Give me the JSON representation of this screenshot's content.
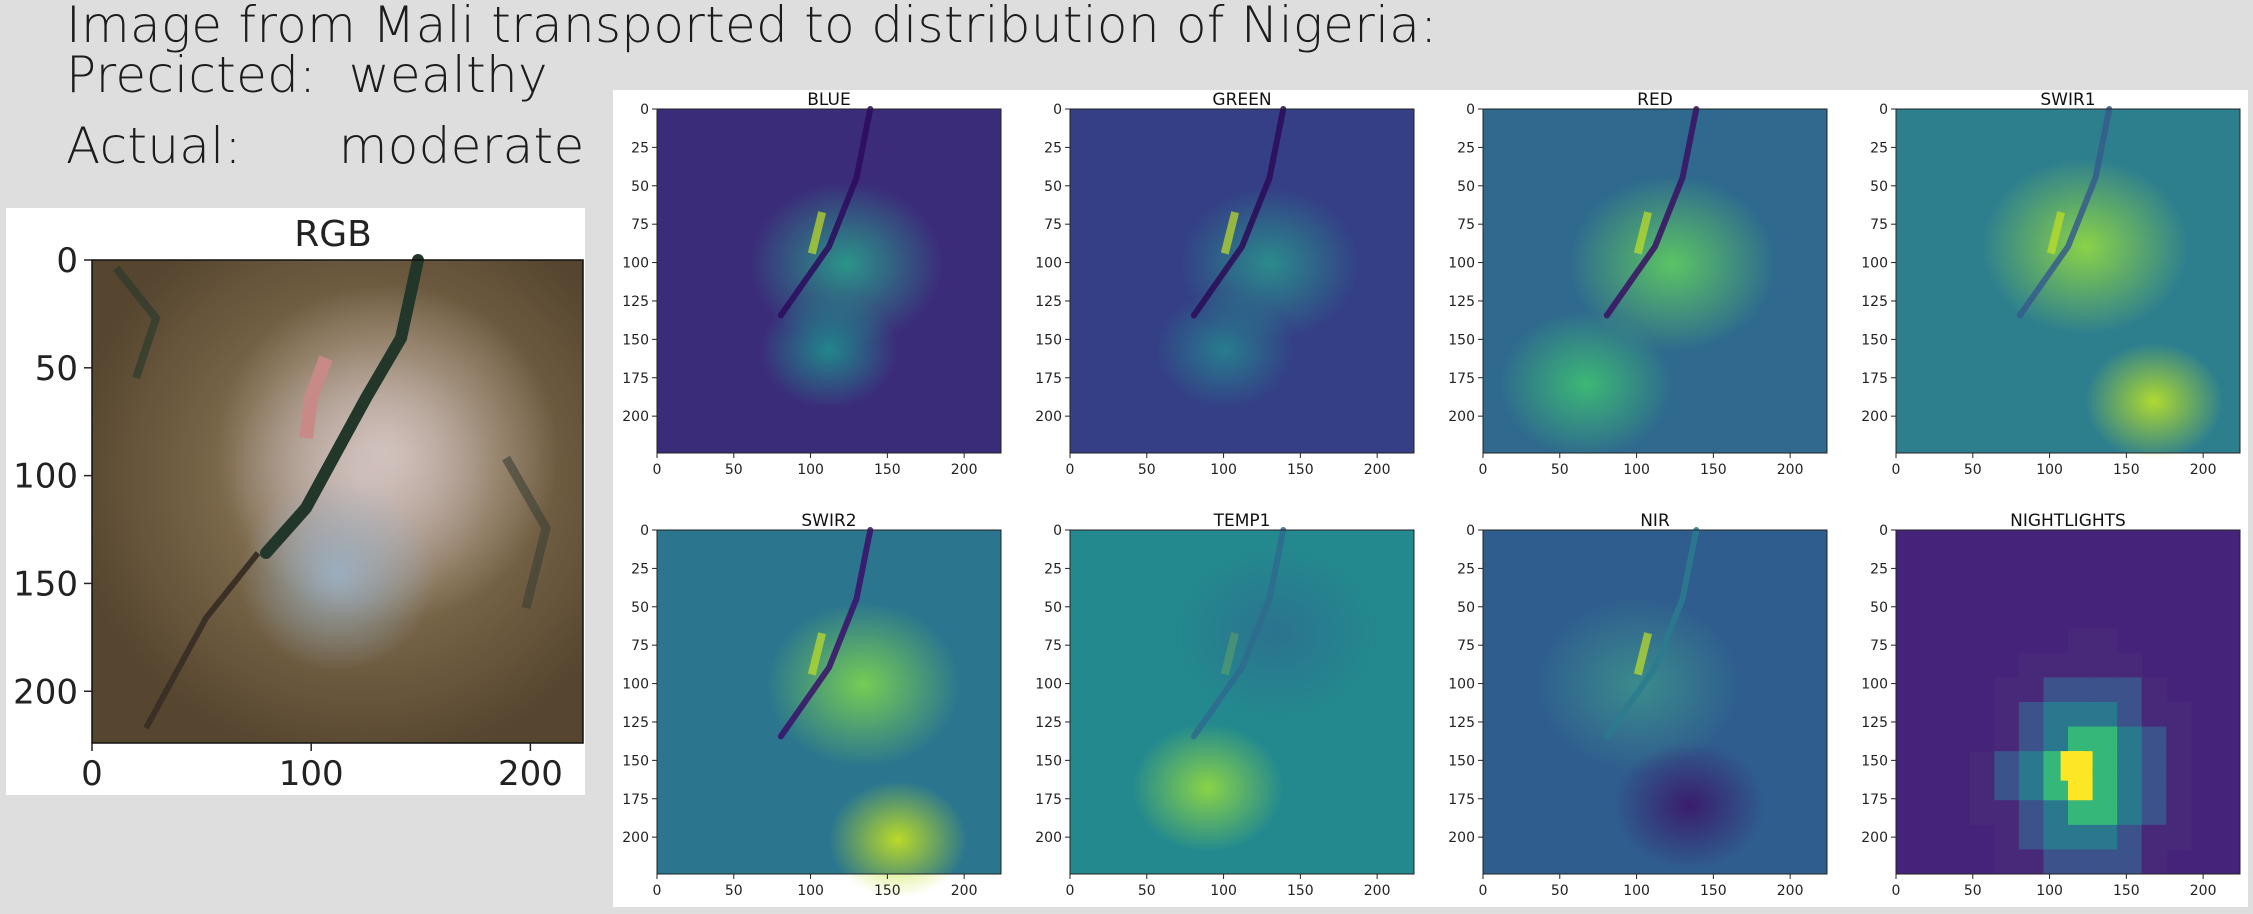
{
  "headline": {
    "line1": "Image from Mali transported to distribution of Nigeria:",
    "line2": "Precicted:  wealthy",
    "line3": "Actual:      moderate"
  },
  "rgb": {
    "title": "RGB",
    "yticks": [
      "0",
      "50",
      "100",
      "150",
      "200"
    ],
    "xticks": [
      "0",
      "100",
      "200"
    ]
  },
  "bands": {
    "titles": [
      "BLUE",
      "GREEN",
      "RED",
      "SWIR1",
      "SWIR2",
      "TEMP1",
      "NIR",
      "NIGHTLIGHTS"
    ],
    "yticks": [
      "0",
      "25",
      "50",
      "75",
      "100",
      "125",
      "150",
      "175",
      "200"
    ],
    "xticks": [
      "0",
      "50",
      "100",
      "150",
      "200"
    ]
  },
  "colors": {
    "viridis_dark": "#440154",
    "viridis_mid": "#21918c",
    "viridis_light": "#fde725",
    "page_bg": "#dedede"
  }
}
